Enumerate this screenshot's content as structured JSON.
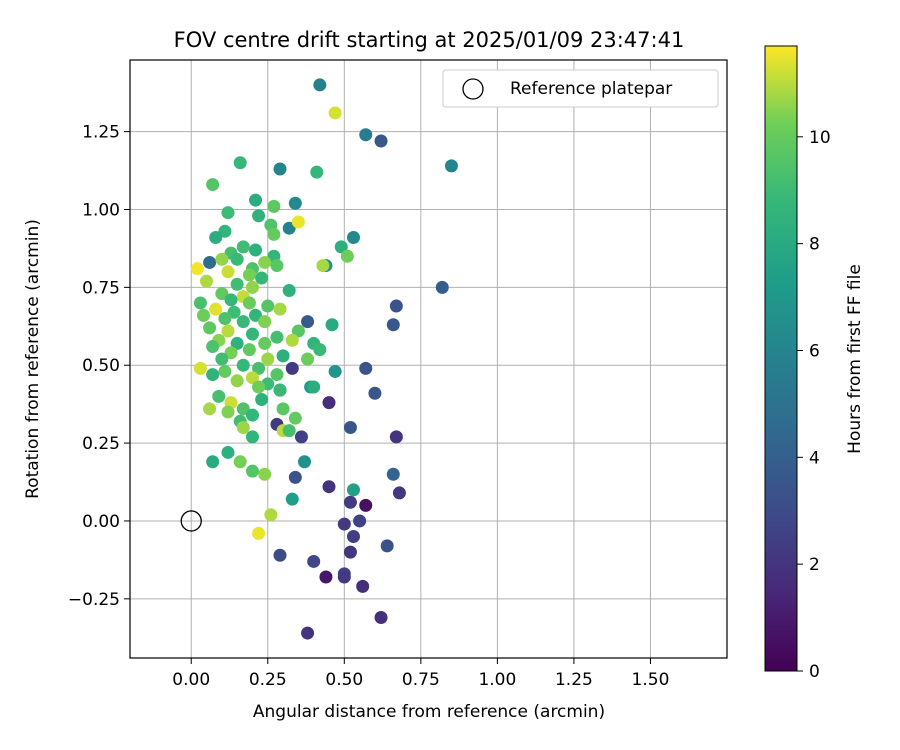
{
  "chart_data": {
    "type": "scatter",
    "title": "FOV centre drift starting at 2025/01/09 23:47:41",
    "xlabel": "Angular distance from reference (arcmin)",
    "ylabel": "Rotation from reference (arcmin)",
    "xlim": [
      -0.2,
      1.75
    ],
    "ylim": [
      -0.44,
      1.48
    ],
    "x_ticks": [
      "0.00",
      "0.25",
      "0.50",
      "0.75",
      "1.00",
      "1.25",
      "1.50"
    ],
    "x_tick_values": [
      0,
      0.25,
      0.5,
      0.75,
      1.0,
      1.25,
      1.5
    ],
    "y_ticks": [
      "−0.25",
      "0.00",
      "0.25",
      "0.50",
      "0.75",
      "1.00",
      "1.25"
    ],
    "y_tick_values": [
      -0.25,
      0,
      0.25,
      0.5,
      0.75,
      1.0,
      1.25
    ],
    "grid": true,
    "legend": {
      "position": "top-right",
      "label": "Reference platepar"
    },
    "reference_point": {
      "x": 0.0,
      "y": 0.0
    },
    "colorbar": {
      "label": "Hours from first FF file",
      "min": 0,
      "max": 11.7,
      "ticks": [
        "0",
        "2",
        "4",
        "6",
        "8",
        "10"
      ],
      "tick_values": [
        0,
        2,
        4,
        6,
        8,
        10
      ],
      "colormap": "viridis"
    },
    "points": [
      {
        "x": 0.42,
        "y": 1.4,
        "h": 5.8
      },
      {
        "x": 0.57,
        "y": 1.24,
        "h": 5.5
      },
      {
        "x": 0.62,
        "y": 1.22,
        "h": 3.6
      },
      {
        "x": 0.85,
        "y": 1.14,
        "h": 6.0
      },
      {
        "x": 0.82,
        "y": 0.75,
        "h": 3.8
      },
      {
        "x": 0.67,
        "y": 0.69,
        "h": 3.3
      },
      {
        "x": 0.66,
        "y": 0.63,
        "h": 3.6
      },
      {
        "x": 0.53,
        "y": 0.91,
        "h": 6.2
      },
      {
        "x": 0.44,
        "y": 0.82,
        "h": 6.3
      },
      {
        "x": 0.38,
        "y": 0.64,
        "h": 3.8
      },
      {
        "x": 0.57,
        "y": 0.49,
        "h": 3.4
      },
      {
        "x": 0.6,
        "y": 0.41,
        "h": 3.5
      },
      {
        "x": 0.45,
        "y": 0.38,
        "h": 1.7
      },
      {
        "x": 0.52,
        "y": 0.3,
        "h": 3.5
      },
      {
        "x": 0.67,
        "y": 0.27,
        "h": 2.0
      },
      {
        "x": 0.66,
        "y": 0.15,
        "h": 4.3
      },
      {
        "x": 0.45,
        "y": 0.11,
        "h": 2.0
      },
      {
        "x": 0.52,
        "y": 0.06,
        "h": 2.3
      },
      {
        "x": 0.57,
        "y": 0.05,
        "h": 0.6
      },
      {
        "x": 0.68,
        "y": 0.09,
        "h": 2.1
      },
      {
        "x": 0.5,
        "y": -0.01,
        "h": 2.2
      },
      {
        "x": 0.55,
        "y": 0.0,
        "h": 2.6
      },
      {
        "x": 0.53,
        "y": -0.05,
        "h": 2.4
      },
      {
        "x": 0.64,
        "y": -0.08,
        "h": 3.3
      },
      {
        "x": 0.52,
        "y": -0.1,
        "h": 2.1
      },
      {
        "x": 0.4,
        "y": -0.13,
        "h": 2.8
      },
      {
        "x": 0.29,
        "y": -0.11,
        "h": 3.0
      },
      {
        "x": 0.5,
        "y": -0.17,
        "h": 2.6
      },
      {
        "x": 0.44,
        "y": -0.18,
        "h": 0.8
      },
      {
        "x": 0.5,
        "y": -0.18,
        "h": 2.2
      },
      {
        "x": 0.56,
        "y": -0.21,
        "h": 1.7
      },
      {
        "x": 0.62,
        "y": -0.31,
        "h": 1.8
      },
      {
        "x": 0.38,
        "y": -0.36,
        "h": 2.0
      },
      {
        "x": 0.34,
        "y": 0.14,
        "h": 3.4
      },
      {
        "x": 0.36,
        "y": 0.27,
        "h": 2.5
      },
      {
        "x": 0.33,
        "y": 0.49,
        "h": 2.3
      },
      {
        "x": 0.29,
        "y": 0.42,
        "h": 1.9
      },
      {
        "x": 0.28,
        "y": 0.31,
        "h": 2.2
      },
      {
        "x": 0.06,
        "y": 0.83,
        "h": 4.6
      },
      {
        "x": 0.34,
        "y": 1.02,
        "h": 6.2
      },
      {
        "x": 0.29,
        "y": 1.13,
        "h": 6.0
      },
      {
        "x": 0.32,
        "y": 0.94,
        "h": 5.8
      },
      {
        "x": 0.47,
        "y": 0.48,
        "h": 6.8
      },
      {
        "x": 0.39,
        "y": 0.43,
        "h": 7.0
      },
      {
        "x": 0.37,
        "y": 0.19,
        "h": 6.6
      },
      {
        "x": 0.33,
        "y": 0.07,
        "h": 7.4
      },
      {
        "x": 0.53,
        "y": 0.1,
        "h": 7.5
      },
      {
        "x": 0.47,
        "y": 1.31,
        "h": 11.3
      },
      {
        "x": 0.35,
        "y": 0.96,
        "h": 11.5
      },
      {
        "x": 0.02,
        "y": 0.81,
        "h": 11.6
      },
      {
        "x": 0.41,
        "y": 1.12,
        "h": 8.7
      },
      {
        "x": 0.16,
        "y": 1.15,
        "h": 8.8
      },
      {
        "x": 0.07,
        "y": 1.08,
        "h": 9.6
      },
      {
        "x": 0.21,
        "y": 1.03,
        "h": 8.2
      },
      {
        "x": 0.27,
        "y": 1.01,
        "h": 9.8
      },
      {
        "x": 0.12,
        "y": 0.99,
        "h": 9.0
      },
      {
        "x": 0.22,
        "y": 0.98,
        "h": 8.5
      },
      {
        "x": 0.26,
        "y": 0.95,
        "h": 9.5
      },
      {
        "x": 0.11,
        "y": 0.93,
        "h": 8.6
      },
      {
        "x": 0.27,
        "y": 0.92,
        "h": 10.0
      },
      {
        "x": 0.08,
        "y": 0.91,
        "h": 8.2
      },
      {
        "x": 0.49,
        "y": 0.88,
        "h": 8.3
      },
      {
        "x": 0.17,
        "y": 0.88,
        "h": 9.1
      },
      {
        "x": 0.21,
        "y": 0.87,
        "h": 8.4
      },
      {
        "x": 0.13,
        "y": 0.86,
        "h": 9.2
      },
      {
        "x": 0.27,
        "y": 0.85,
        "h": 8.7
      },
      {
        "x": 0.51,
        "y": 0.85,
        "h": 10.2
      },
      {
        "x": 0.1,
        "y": 0.84,
        "h": 10.6
      },
      {
        "x": 0.15,
        "y": 0.84,
        "h": 8.9
      },
      {
        "x": 0.24,
        "y": 0.83,
        "h": 10.5
      },
      {
        "x": 0.43,
        "y": 0.82,
        "h": 10.8
      },
      {
        "x": 0.2,
        "y": 0.81,
        "h": 9.4
      },
      {
        "x": 0.28,
        "y": 0.82,
        "h": 9.7
      },
      {
        "x": 0.12,
        "y": 0.8,
        "h": 11.2
      },
      {
        "x": 0.19,
        "y": 0.79,
        "h": 10.3
      },
      {
        "x": 0.23,
        "y": 0.78,
        "h": 8.8
      },
      {
        "x": 0.05,
        "y": 0.77,
        "h": 10.9
      },
      {
        "x": 0.15,
        "y": 0.76,
        "h": 9.1
      },
      {
        "x": 0.2,
        "y": 0.75,
        "h": 10.6
      },
      {
        "x": 0.32,
        "y": 0.74,
        "h": 8.5
      },
      {
        "x": 0.1,
        "y": 0.73,
        "h": 9.9
      },
      {
        "x": 0.17,
        "y": 0.72,
        "h": 11.1
      },
      {
        "x": 0.13,
        "y": 0.71,
        "h": 8.8
      },
      {
        "x": 0.03,
        "y": 0.7,
        "h": 9.3
      },
      {
        "x": 0.19,
        "y": 0.7,
        "h": 10.1
      },
      {
        "x": 0.25,
        "y": 0.69,
        "h": 9.6
      },
      {
        "x": 0.08,
        "y": 0.68,
        "h": 11.4
      },
      {
        "x": 0.29,
        "y": 0.68,
        "h": 10.8
      },
      {
        "x": 0.14,
        "y": 0.67,
        "h": 9.0
      },
      {
        "x": 0.21,
        "y": 0.66,
        "h": 8.6
      },
      {
        "x": 0.04,
        "y": 0.66,
        "h": 10.2
      },
      {
        "x": 0.11,
        "y": 0.65,
        "h": 9.5
      },
      {
        "x": 0.24,
        "y": 0.64,
        "h": 10.4
      },
      {
        "x": 0.17,
        "y": 0.64,
        "h": 8.9
      },
      {
        "x": 0.46,
        "y": 0.63,
        "h": 8.0
      },
      {
        "x": 0.06,
        "y": 0.62,
        "h": 9.8
      },
      {
        "x": 0.12,
        "y": 0.61,
        "h": 11.0
      },
      {
        "x": 0.35,
        "y": 0.61,
        "h": 9.7
      },
      {
        "x": 0.2,
        "y": 0.6,
        "h": 8.7
      },
      {
        "x": 0.28,
        "y": 0.59,
        "h": 9.2
      },
      {
        "x": 0.09,
        "y": 0.58,
        "h": 10.5
      },
      {
        "x": 0.15,
        "y": 0.57,
        "h": 8.4
      },
      {
        "x": 0.33,
        "y": 0.58,
        "h": 10.9
      },
      {
        "x": 0.24,
        "y": 0.57,
        "h": 10.0
      },
      {
        "x": 0.4,
        "y": 0.57,
        "h": 8.6
      },
      {
        "x": 0.07,
        "y": 0.56,
        "h": 9.4
      },
      {
        "x": 0.19,
        "y": 0.55,
        "h": 9.9
      },
      {
        "x": 0.42,
        "y": 0.55,
        "h": 8.9
      },
      {
        "x": 0.13,
        "y": 0.54,
        "h": 10.3
      },
      {
        "x": 0.3,
        "y": 0.53,
        "h": 8.3
      },
      {
        "x": 0.1,
        "y": 0.52,
        "h": 9.1
      },
      {
        "x": 0.25,
        "y": 0.52,
        "h": 10.7
      },
      {
        "x": 0.38,
        "y": 0.52,
        "h": 10.1
      },
      {
        "x": 0.17,
        "y": 0.5,
        "h": 8.8
      },
      {
        "x": 0.03,
        "y": 0.49,
        "h": 11.3
      },
      {
        "x": 0.22,
        "y": 0.49,
        "h": 9.3
      },
      {
        "x": 0.11,
        "y": 0.48,
        "h": 10.0
      },
      {
        "x": 0.28,
        "y": 0.47,
        "h": 9.6
      },
      {
        "x": 0.07,
        "y": 0.47,
        "h": 8.5
      },
      {
        "x": 0.2,
        "y": 0.46,
        "h": 11.0
      },
      {
        "x": 0.15,
        "y": 0.45,
        "h": 10.6
      },
      {
        "x": 0.25,
        "y": 0.44,
        "h": 9.0
      },
      {
        "x": 0.4,
        "y": 0.43,
        "h": 8.2
      },
      {
        "x": 0.29,
        "y": 0.42,
        "h": 8.9
      },
      {
        "x": 0.22,
        "y": 0.43,
        "h": 10.2
      },
      {
        "x": 0.09,
        "y": 0.4,
        "h": 9.3
      },
      {
        "x": 0.23,
        "y": 0.39,
        "h": 8.4
      },
      {
        "x": 0.13,
        "y": 0.38,
        "h": 11.2
      },
      {
        "x": 0.06,
        "y": 0.36,
        "h": 10.8
      },
      {
        "x": 0.17,
        "y": 0.36,
        "h": 9.5
      },
      {
        "x": 0.3,
        "y": 0.36,
        "h": 9.7
      },
      {
        "x": 0.12,
        "y": 0.35,
        "h": 10.4
      },
      {
        "x": 0.2,
        "y": 0.34,
        "h": 8.7
      },
      {
        "x": 0.34,
        "y": 0.33,
        "h": 10.0
      },
      {
        "x": 0.16,
        "y": 0.32,
        "h": 9.1
      },
      {
        "x": 0.17,
        "y": 0.3,
        "h": 10.7
      },
      {
        "x": 0.3,
        "y": 0.29,
        "h": 11.0
      },
      {
        "x": 0.32,
        "y": 0.29,
        "h": 9.2
      },
      {
        "x": 0.2,
        "y": 0.27,
        "h": 8.6
      },
      {
        "x": 0.12,
        "y": 0.22,
        "h": 8.3
      },
      {
        "x": 0.07,
        "y": 0.19,
        "h": 8.0
      },
      {
        "x": 0.16,
        "y": 0.19,
        "h": 10.3
      },
      {
        "x": 0.2,
        "y": 0.16,
        "h": 9.6
      },
      {
        "x": 0.24,
        "y": 0.15,
        "h": 10.5
      },
      {
        "x": 0.26,
        "y": 0.02,
        "h": 10.9
      },
      {
        "x": 0.22,
        "y": -0.04,
        "h": 11.5
      }
    ]
  }
}
